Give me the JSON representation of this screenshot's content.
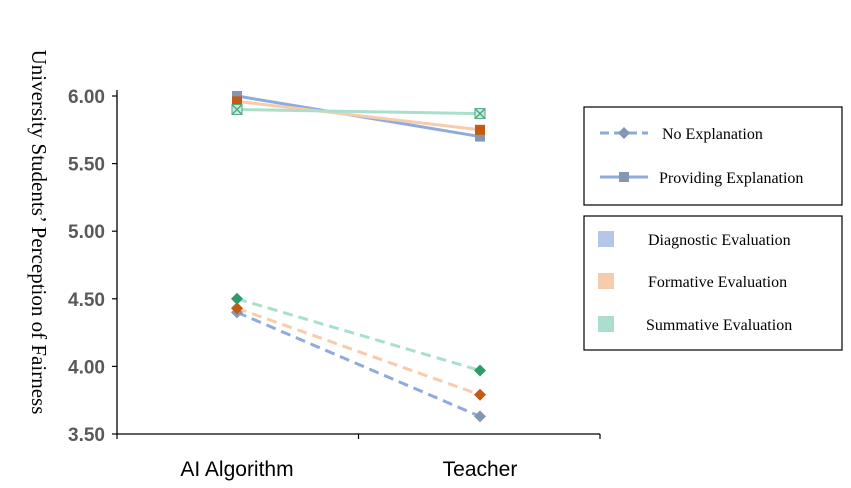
{
  "chart_data": {
    "type": "line",
    "xlabel": "",
    "ylabel": "University Students’ Perception of Fairness",
    "categories": [
      "AI Algorithm",
      "Teacher"
    ],
    "ylim": [
      3.5,
      6.0
    ],
    "yticks": [
      "3.50",
      "4.00",
      "4.50",
      "5.00",
      "5.50",
      "6.00"
    ],
    "grid": false,
    "series": [
      {
        "group": "Providing Explanation",
        "evaluation": "Diagnostic Evaluation",
        "values": [
          6.0,
          5.7
        ],
        "color": "#8FAADC",
        "marker_color": "#8497B0",
        "marker": "square",
        "dash": false
      },
      {
        "group": "Providing Explanation",
        "evaluation": "Formative Evaluation",
        "values": [
          5.96,
          5.75
        ],
        "color": "#F8CBAD",
        "marker_color": "#C55A11",
        "marker": "square",
        "dash": false
      },
      {
        "group": "Providing Explanation",
        "evaluation": "Summative Evaluation",
        "values": [
          5.9,
          5.87
        ],
        "color": "#A9DFCB",
        "marker_color": "#53A585",
        "marker": "x",
        "dash": false
      },
      {
        "group": "No Explanation",
        "evaluation": "Diagnostic Evaluation",
        "values": [
          4.4,
          3.63
        ],
        "color": "#8FAADC",
        "marker_color": "#8497B0",
        "marker": "diamond",
        "dash": true
      },
      {
        "group": "No Explanation",
        "evaluation": "Formative Evaluation",
        "values": [
          4.43,
          3.79
        ],
        "color": "#F8CBAD",
        "marker_color": "#C55A11",
        "marker": "diamond",
        "dash": true
      },
      {
        "group": "No Explanation",
        "evaluation": "Summative Evaluation",
        "values": [
          4.5,
          3.97
        ],
        "color": "#A9DFCB",
        "marker_color": "#2E9C6A",
        "marker": "diamond",
        "dash": true
      }
    ],
    "legend_line_types": [
      {
        "label": "No Explanation",
        "dash": true,
        "marker": "diamond"
      },
      {
        "label": "Providing Explanation",
        "dash": false,
        "marker": "square"
      }
    ],
    "legend_colors": [
      {
        "label": "Diagnostic Evaluation",
        "color": "#B4C7E7"
      },
      {
        "label": "Formative Evaluation",
        "color": "#F8CBAD"
      },
      {
        "label": "Summative Evaluation",
        "color": "#A9DFCB"
      }
    ],
    "legend_position": "right"
  }
}
